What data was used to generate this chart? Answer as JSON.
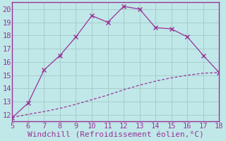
{
  "xlabel": "Windchill (Refroidissement éolien,°C)",
  "xlim": [
    5,
    18
  ],
  "ylim": [
    11.5,
    20.5
  ],
  "xticks": [
    5,
    6,
    7,
    8,
    9,
    10,
    11,
    12,
    13,
    14,
    15,
    16,
    17,
    18
  ],
  "yticks": [
    12,
    13,
    14,
    15,
    16,
    17,
    18,
    19,
    20
  ],
  "background_color": "#c0e8e8",
  "grid_color": "#a8cccc",
  "line_color": "#993399",
  "line1_x": [
    5,
    6,
    7,
    8,
    9,
    10,
    11,
    12,
    13,
    14,
    15,
    16,
    17,
    18
  ],
  "line1_y": [
    11.8,
    12.9,
    15.4,
    16.5,
    17.9,
    19.5,
    19.0,
    20.2,
    20.0,
    18.6,
    18.5,
    17.9,
    16.5,
    15.2
  ],
  "line2_x": [
    5,
    6,
    7,
    8,
    9,
    10,
    11,
    12,
    13,
    14,
    15,
    16,
    17,
    18
  ],
  "line2_y": [
    11.8,
    12.05,
    12.25,
    12.5,
    12.8,
    13.15,
    13.5,
    13.9,
    14.25,
    14.55,
    14.8,
    15.0,
    15.15,
    15.2
  ],
  "marker": "x",
  "markersize": 4,
  "linewidth": 0.9,
  "font_color": "#993399",
  "font_family": "monospace",
  "tick_fontsize": 7.5,
  "xlabel_fontsize": 8.0
}
